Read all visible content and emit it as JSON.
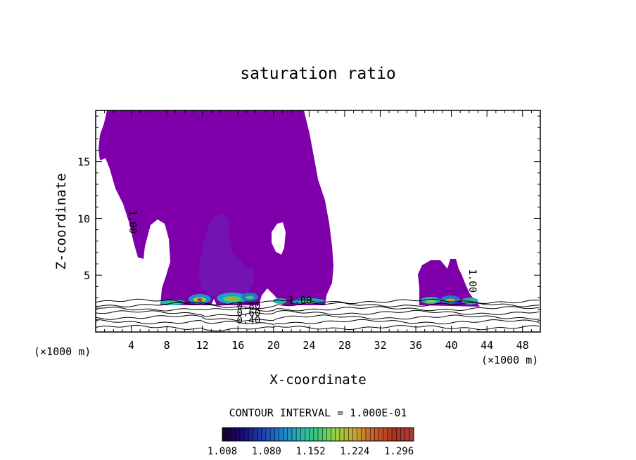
{
  "chart_data": {
    "type": "contour",
    "title": "saturation ratio",
    "xlabel": "X-coordinate",
    "ylabel": "Z-coordinate",
    "x_unit_left": "(×1000 m)",
    "x_unit_right": "(×1000 m)",
    "xlim": [
      0,
      50
    ],
    "ylim": [
      0,
      19.5
    ],
    "x_ticks": [
      4,
      8,
      12,
      16,
      20,
      24,
      28,
      32,
      36,
      40,
      44,
      48
    ],
    "y_ticks": [
      5,
      10,
      15
    ],
    "contour_interval_label": "CONTOUR INTERVAL = 1.000E-01",
    "colorbar": {
      "labels": [
        "1.008",
        "1.080",
        "1.152",
        "1.224",
        "1.296"
      ],
      "min": 1.008,
      "max": 1.32
    },
    "contour_labels": [
      {
        "text": "1.00",
        "x": 3.8,
        "z": 9.7,
        "rotate": 90
      },
      {
        "text": "1.00",
        "x": 23.0,
        "z": 2.5,
        "rotate": 0
      },
      {
        "text": "1.00",
        "x": 42.0,
        "z": 4.5,
        "rotate": 90
      },
      {
        "text": "0.80",
        "x": 17.2,
        "z": 2.0,
        "rotate": 0
      },
      {
        "text": "0.60",
        "x": 17.2,
        "z": 1.4,
        "rotate": 0
      },
      {
        "text": "0.40",
        "x": 17.2,
        "z": 0.75,
        "rotate": 0
      }
    ],
    "fill_color": "#7f00aa",
    "colorbar_colors": [
      "#140024",
      "#1a0a6e",
      "#1f3aa8",
      "#1f78c8",
      "#28b0b0",
      "#40c878",
      "#9ad040",
      "#c8a030",
      "#c85a28",
      "#b03020",
      "#a04040"
    ]
  }
}
